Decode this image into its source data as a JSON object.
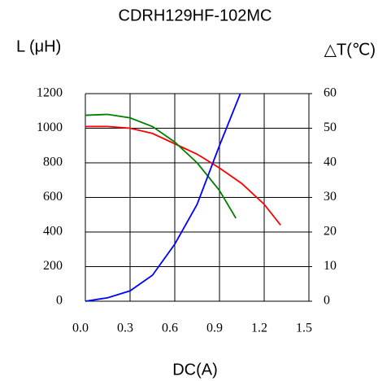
{
  "chart_data": {
    "type": "line",
    "title": "CDRH129HF-102MC",
    "y_label": "L (μH)",
    "y2_label": "△T(℃)",
    "x_label": "DC(A)",
    "xlim": [
      0,
      1.5
    ],
    "xticks": [
      {
        "value": 0,
        "label": "0.0"
      },
      0.3,
      0.6,
      0.9,
      1.2,
      1.5
    ],
    "ylim": [
      0,
      1200
    ],
    "yticks": [
      0,
      200,
      400,
      600,
      800,
      1000,
      1200
    ],
    "y2lim": [
      0,
      60
    ],
    "y2ticks": [
      0,
      10,
      20,
      30,
      40,
      50,
      60
    ],
    "grid": true,
    "series": [
      {
        "color": "#ff0000",
        "x": [
          0,
          0.15,
          0.3,
          0.45,
          0.6,
          0.75,
          0.9,
          1.05,
          1.2,
          1.31
        ],
        "values": [
          1010,
          1010,
          1000,
          970,
          910,
          850,
          770,
          680,
          560,
          440
        ]
      },
      {
        "color": "#008000",
        "x": [
          0,
          0.15,
          0.3,
          0.45,
          0.6,
          0.75,
          0.9,
          1.01
        ],
        "values": [
          1075,
          1080,
          1060,
          1010,
          920,
          800,
          640,
          480
        ]
      },
      {
        "color": "#0000ff",
        "axis": "y2",
        "x": [
          0,
          0.15,
          0.3,
          0.45,
          0.6,
          0.75,
          0.9,
          1.04
        ],
        "values": [
          0,
          1,
          3,
          7.5,
          16.5,
          28,
          45,
          60
        ]
      }
    ]
  }
}
